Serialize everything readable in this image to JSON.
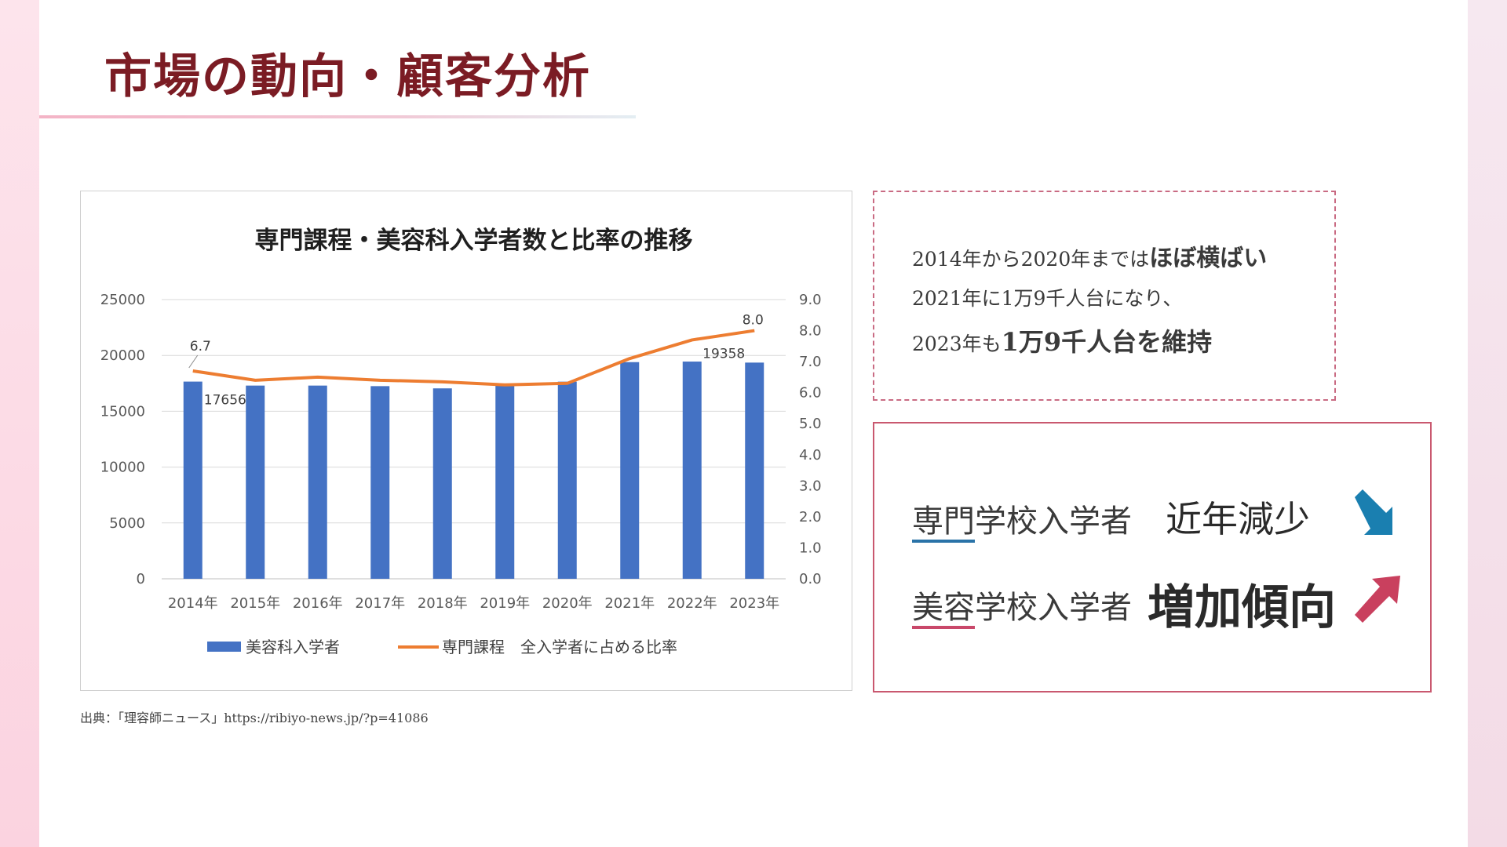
{
  "page": {
    "title": "市場の動向・顧客分析",
    "source": "出典：「理容師ニュース」https://ribiyo-news.jp/?p=41086"
  },
  "chart_data": {
    "type": "bar",
    "title": "専門課程・美容科入学者数と比率の推移",
    "categories": [
      "2014年",
      "2015年",
      "2016年",
      "2017年",
      "2018年",
      "2019年",
      "2020年",
      "2021年",
      "2022年",
      "2023年"
    ],
    "y_left": {
      "min": 0,
      "max": 25000,
      "ticks": [
        "0",
        "5000",
        "10000",
        "15000",
        "20000",
        "25000"
      ]
    },
    "y_right": {
      "min": 0,
      "max": 9,
      "ticks": [
        "0.0",
        "1.0",
        "2.0",
        "3.0",
        "4.0",
        "5.0",
        "6.0",
        "7.0",
        "8.0",
        "9.0"
      ]
    },
    "series": [
      {
        "name": "美容科入学者",
        "type": "bar",
        "axis": "left",
        "color": "#4472c4",
        "values": [
          17656,
          17300,
          17300,
          17250,
          17050,
          17400,
          17650,
          19400,
          19450,
          19358
        ]
      },
      {
        "name": "専門課程　全入学者に占める比率",
        "type": "line",
        "axis": "right",
        "color": "#ed7d31",
        "values": [
          6.7,
          6.4,
          6.5,
          6.4,
          6.35,
          6.25,
          6.3,
          7.1,
          7.7,
          8.0
        ]
      }
    ],
    "data_labels": {
      "first_bar": "17656",
      "last_bar": "19358",
      "first_line": "6.7",
      "last_line": "8.0"
    },
    "legend_position": "bottom",
    "grid": true
  },
  "notes": {
    "line1_prefix": "2014年から2020年までは",
    "line1_emph": "ほぼ横ばい",
    "line2": "2021年に1万9千人台になり、",
    "line3_prefix": "2023年も",
    "line3_emph": "1万9千人台を維持"
  },
  "trends": [
    {
      "label": "専門学校入学者",
      "value": "近年減少",
      "arrow": "down-right-arrow",
      "color": "#1a7fb0"
    },
    {
      "label": "美容学校入学者",
      "value": "増加傾向",
      "arrow": "up-right-arrow",
      "color": "#c9405e"
    }
  ]
}
